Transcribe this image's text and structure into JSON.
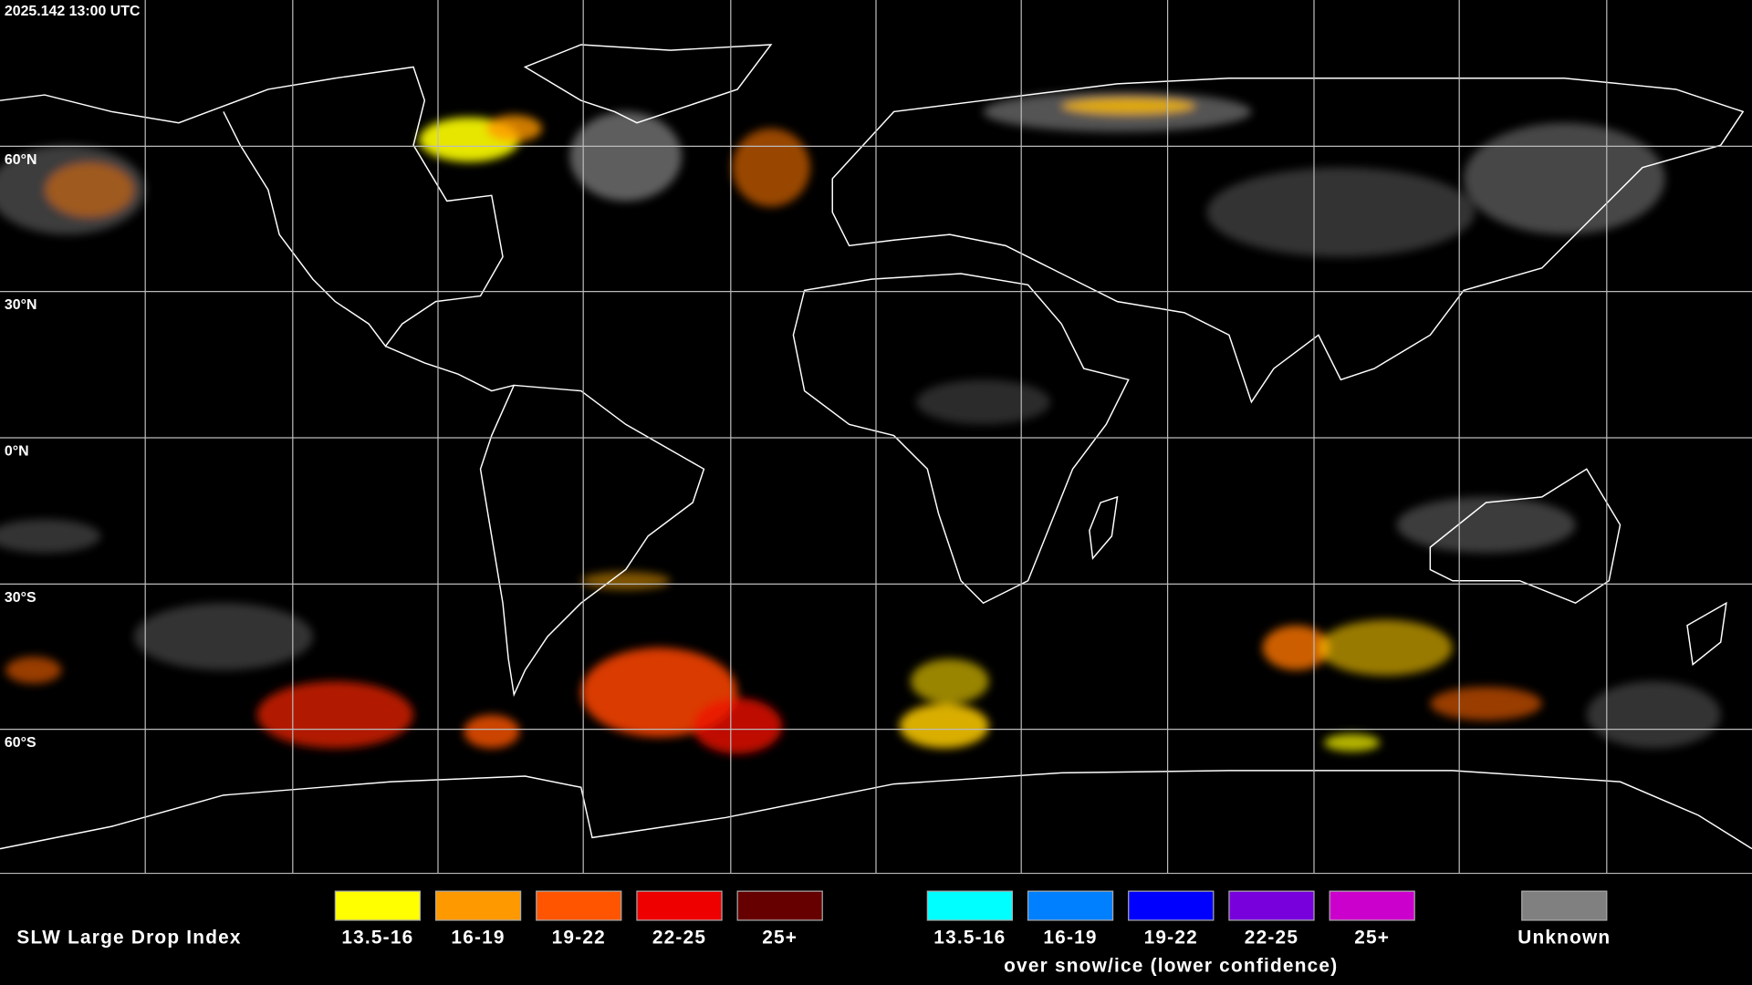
{
  "header": {
    "timestamp": "2025.142 13:00 UTC"
  },
  "map": {
    "lat_labels": [
      "60°N",
      "30°N",
      "0°N",
      "30°S",
      "60°S"
    ]
  },
  "legend": {
    "title": "SLW Large Drop Index",
    "items": [
      {
        "label": "13.5-16",
        "color": "#ffff00"
      },
      {
        "label": "16-19",
        "color": "#ff9900"
      },
      {
        "label": "19-22",
        "color": "#ff5500"
      },
      {
        "label": "22-25",
        "color": "#ee0000"
      },
      {
        "label": "25+",
        "color": "#660000"
      }
    ],
    "snow_ice_items": [
      {
        "label": "13.5-16",
        "color": "#00ffff"
      },
      {
        "label": "16-19",
        "color": "#0080ff"
      },
      {
        "label": "19-22",
        "color": "#0000ff"
      },
      {
        "label": "22-25",
        "color": "#7700dd"
      },
      {
        "label": "25+",
        "color": "#cc00cc"
      }
    ],
    "snow_ice_caption": "over snow/ice (lower confidence)",
    "unknown": {
      "label": "Unknown",
      "color": "#808080"
    }
  }
}
